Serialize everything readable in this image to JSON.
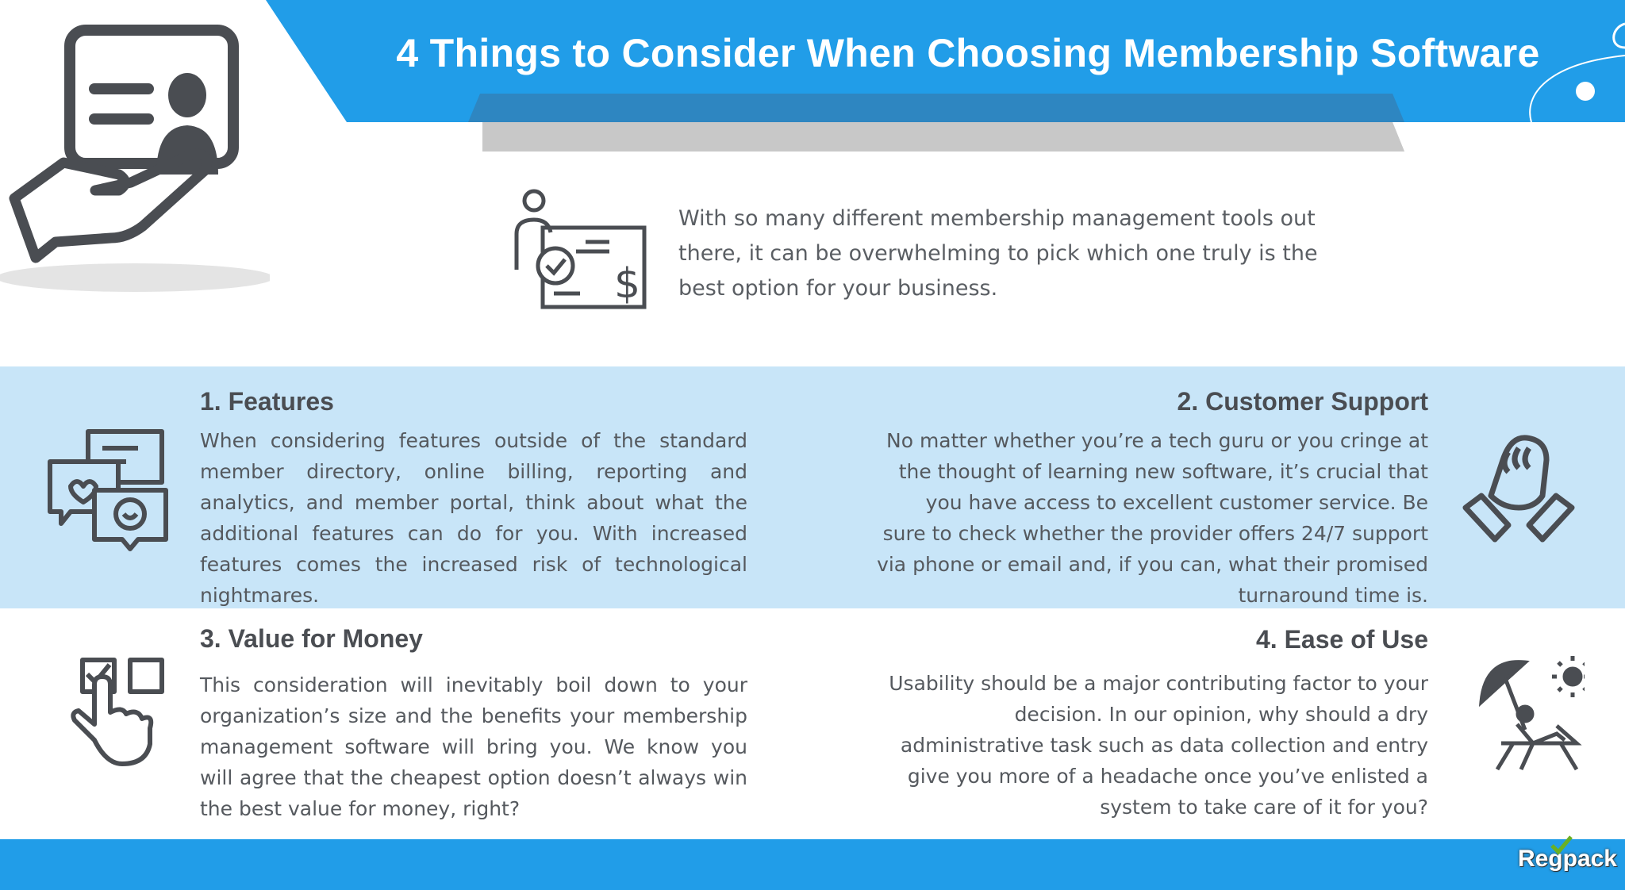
{
  "header": {
    "title": "4 Things to Consider When Choosing Membership Software"
  },
  "intro": {
    "text": "With so many different membership management tools out there, it can be overwhelming to pick which one truly is the best option for your business.",
    "icon": "person-check-invoice-icon"
  },
  "sections": [
    {
      "heading": "1.  Features",
      "text": "When considering features outside of the standard member directory, online billing, reporting and analytics, and member portal, think about what the additional features can do for you. With increased features comes the increased risk of technological nightmares.",
      "icon": "chat-bubbles-icon"
    },
    {
      "heading": "2.  Customer Support",
      "text": "No matter whether you’re a tech guru or you cringe at the thought of learning new software, it’s crucial that you have access to excellent customer service.  Be sure to check whether the provider offers 24/7 support via phone or email and, if you can, what their promised turnaround time is.",
      "icon": "handshake-icon"
    },
    {
      "heading": "3. Value for Money",
      "text": "This consideration will inevitably boil down to your organization’s size and the benefits your membership management software will bring you. We know you will agree that the cheapest option doesn’t always win the best value for money, right?",
      "icon": "checkbox-hand-icon"
    },
    {
      "heading": "4.  Ease of Use",
      "text": "Usability should be a major contributing factor to your decision. In our opinion, why should a dry administrative task such as data collection and entry give you more of a headache once you’ve enlisted a system to take care of it for you?",
      "icon": "beach-chair-icon"
    }
  ],
  "footer": {
    "logo": "Regpack"
  },
  "colors": {
    "primary": "#219de8",
    "band": "#c8e5f8",
    "dark_blue": "#2e86c1",
    "icon": "#4a4d52"
  }
}
